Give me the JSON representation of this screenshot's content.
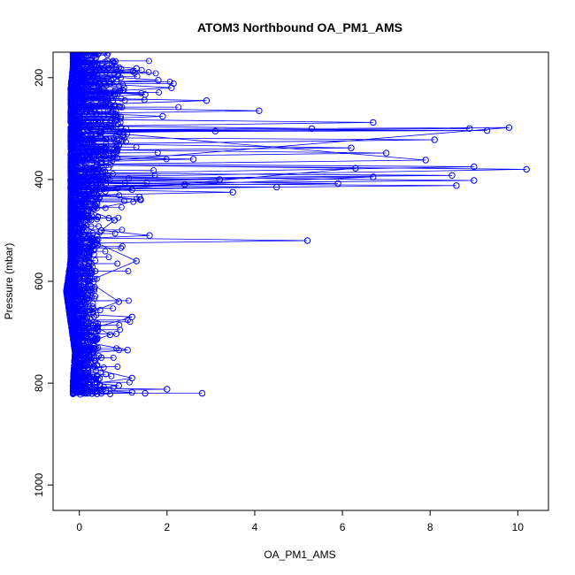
{
  "chart_data": {
    "type": "scatter",
    "title": "ATOM3 Northbound OA_PM1_AMS",
    "xlabel": "OA_PM1_AMS",
    "ylabel": "Pressure (mbar)",
    "xlim": [
      -0.6,
      10.7
    ],
    "ylim": [
      1050,
      150
    ],
    "y_reversed": true,
    "x_ticks": [
      0,
      2,
      4,
      6,
      8,
      10
    ],
    "x_tick_labels": [
      "0",
      "2",
      "4",
      "6",
      "8",
      "10"
    ],
    "y_ticks": [
      200,
      400,
      600,
      800,
      1000
    ],
    "y_tick_labels": [
      "200",
      "400",
      "600",
      "800",
      "1000"
    ],
    "grid": false,
    "legend": "none",
    "series_color": "#0000ff",
    "marker": "open-circle",
    "connected": true,
    "series": [
      {
        "x": [
          0.05,
          0.4,
          1.3,
          0.2,
          1.8,
          0.1,
          2.1,
          0.3,
          1.5,
          0.05,
          2.9,
          0.6,
          0.2,
          4.1,
          0.3,
          1.9,
          0.1,
          6.7,
          0.4,
          5.3,
          0.2,
          3.1,
          0.5,
          1.0,
          0.1,
          8.1,
          0.3,
          6.2,
          0.6,
          7.0,
          0.2,
          2.6,
          0.4,
          9.8,
          0.3,
          9.3,
          0.5,
          8.9,
          0.2,
          7.9,
          0.4,
          9.0,
          0.3,
          8.5,
          0.6,
          3.2,
          0.1,
          2.4,
          0.5,
          1.2,
          0.2,
          6.3,
          0.4,
          10.2,
          0.3,
          9.0,
          0.6,
          8.6,
          0.2,
          6.7,
          0.4,
          5.9,
          0.3,
          4.5,
          0.1,
          3.5,
          0.4,
          1.4,
          0.2,
          0.8,
          0.5,
          1.6,
          0.3,
          5.2,
          0.4,
          1.3,
          0.2,
          0.9,
          0.1,
          1.2,
          0.4,
          0.7,
          0.2,
          1.1,
          0.3,
          0.5,
          0.2,
          1.2,
          0.4,
          0.9,
          0.3,
          2.0,
          0.6,
          1.2,
          0.2,
          2.8,
          1.5,
          0.5,
          0.1,
          0.02
        ],
        "y": [
          160,
          175,
          182,
          195,
          205,
          210,
          220,
          228,
          233,
          240,
          245,
          252,
          260,
          265,
          270,
          276,
          282,
          288,
          295,
          300,
          302,
          305,
          308,
          312,
          318,
          322,
          330,
          338,
          342,
          348,
          355,
          360,
          365,
          298,
          302,
          304,
          306,
          300,
          305,
          362,
          370,
          375,
          388,
          392,
          398,
          400,
          405,
          410,
          415,
          420,
          425,
          378,
          372,
          380,
          395,
          402,
          408,
          412,
          418,
          395,
          402,
          408,
          412,
          415,
          420,
          425,
          430,
          440,
          460,
          480,
          500,
          510,
          515,
          520,
          525,
          560,
          600,
          640,
          665,
          670,
          690,
          705,
          720,
          735,
          740,
          750,
          770,
          790,
          800,
          805,
          810,
          812,
          815,
          818,
          820,
          820,
          820,
          820,
          820,
          822
        ]
      }
    ],
    "band": [
      {
        "p": 150,
        "lo": -0.15,
        "hi": 1.9
      },
      {
        "p": 180,
        "lo": -0.15,
        "hi": 2.4
      },
      {
        "p": 220,
        "lo": -0.2,
        "hi": 2.7
      },
      {
        "p": 260,
        "lo": -0.2,
        "hi": 2.6
      },
      {
        "p": 300,
        "lo": -0.2,
        "hi": 2.7
      },
      {
        "p": 340,
        "lo": -0.2,
        "hi": 2.4
      },
      {
        "p": 380,
        "lo": -0.2,
        "hi": 2.2
      },
      {
        "p": 420,
        "lo": -0.2,
        "hi": 1.6
      },
      {
        "p": 460,
        "lo": -0.2,
        "hi": 1.2
      },
      {
        "p": 500,
        "lo": -0.2,
        "hi": 1.3
      },
      {
        "p": 560,
        "lo": -0.2,
        "hi": 1.1
      },
      {
        "p": 620,
        "lo": -0.3,
        "hi": 1.2
      },
      {
        "p": 680,
        "lo": -0.2,
        "hi": 1.2
      },
      {
        "p": 740,
        "lo": -0.1,
        "hi": 1.1
      },
      {
        "p": 800,
        "lo": -0.15,
        "hi": 1.3
      },
      {
        "p": 822,
        "lo": -0.15,
        "hi": 2.2
      }
    ]
  }
}
